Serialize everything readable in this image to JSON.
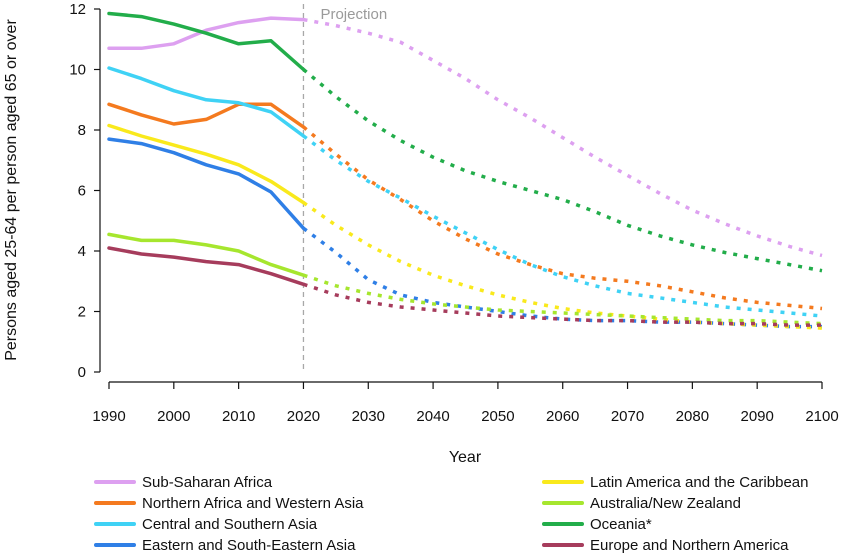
{
  "chart_data": {
    "type": "line",
    "title": "",
    "xlabel": "Year",
    "ylabel": "Persons aged 25-64 per person aged 65 or over",
    "xlim": [
      1990,
      2100
    ],
    "ylim": [
      0,
      12
    ],
    "x_ticks": [
      "1990",
      "2000",
      "2010",
      "2020",
      "2030",
      "2040",
      "2050",
      "2060",
      "2070",
      "2080",
      "2090",
      "2100"
    ],
    "y_ticks": [
      "0",
      "2",
      "4",
      "6",
      "8",
      "10",
      "12"
    ],
    "projection_start": 2020,
    "projection_label": "Projection",
    "grid": false,
    "legend_position": "bottom",
    "x_observed": [
      1990,
      1995,
      2000,
      2005,
      2010,
      2015,
      2020
    ],
    "x_projected": [
      2020,
      2025,
      2030,
      2035,
      2040,
      2045,
      2050,
      2055,
      2060,
      2065,
      2070,
      2075,
      2080,
      2085,
      2090,
      2095,
      2100
    ],
    "series": [
      {
        "name": "Sub-Saharan Africa",
        "color": "#dda0f0",
        "observed": [
          10.7,
          10.7,
          10.85,
          11.3,
          11.55,
          11.7,
          11.65
        ],
        "projected": [
          11.65,
          11.45,
          11.2,
          10.9,
          10.3,
          9.7,
          9.0,
          8.4,
          7.75,
          7.1,
          6.5,
          5.9,
          5.35,
          4.9,
          4.5,
          4.15,
          3.85
        ]
      },
      {
        "name": "Northern Africa and Western Asia",
        "color": "#f47a1f",
        "observed": [
          8.85,
          8.5,
          8.2,
          8.35,
          8.85,
          8.85,
          8.1
        ],
        "projected": [
          8.1,
          7.2,
          6.35,
          5.7,
          5.0,
          4.4,
          3.9,
          3.55,
          3.25,
          3.1,
          3.0,
          2.85,
          2.65,
          2.45,
          2.3,
          2.2,
          2.1
        ]
      },
      {
        "name": "Central and Southern Asia",
        "color": "#3fd2f5",
        "observed": [
          10.05,
          9.7,
          9.3,
          9.0,
          8.9,
          8.6,
          7.8
        ],
        "projected": [
          7.8,
          7.0,
          6.3,
          5.75,
          5.15,
          4.6,
          4.05,
          3.55,
          3.15,
          2.85,
          2.6,
          2.45,
          2.3,
          2.15,
          2.05,
          1.95,
          1.85
        ]
      },
      {
        "name": "Eastern and South-Eastern Asia",
        "color": "#2f7fe6",
        "observed": [
          7.7,
          7.55,
          7.25,
          6.85,
          6.55,
          5.95,
          4.75
        ],
        "projected": [
          4.75,
          3.95,
          3.05,
          2.55,
          2.3,
          2.15,
          2.0,
          1.85,
          1.75,
          1.7,
          1.7,
          1.65,
          1.65,
          1.6,
          1.55,
          1.5,
          1.5
        ]
      },
      {
        "name": "Latin America and the Caribbean",
        "color": "#f9e91c",
        "observed": [
          8.15,
          7.8,
          7.5,
          7.2,
          6.85,
          6.3,
          5.6
        ],
        "projected": [
          5.6,
          4.85,
          4.2,
          3.65,
          3.2,
          2.85,
          2.55,
          2.3,
          2.1,
          1.95,
          1.85,
          1.75,
          1.65,
          1.6,
          1.55,
          1.5,
          1.45
        ]
      },
      {
        "name": "Australia/New Zealand",
        "color": "#a6e62e",
        "observed": [
          4.55,
          4.35,
          4.35,
          4.2,
          4.0,
          3.55,
          3.2
        ],
        "projected": [
          3.2,
          2.85,
          2.6,
          2.4,
          2.25,
          2.15,
          2.05,
          2.0,
          1.95,
          1.9,
          1.85,
          1.8,
          1.75,
          1.7,
          1.7,
          1.65,
          1.6
        ]
      },
      {
        "name": "Oceania*",
        "color": "#22ad4a",
        "observed": [
          11.85,
          11.75,
          11.5,
          11.2,
          10.85,
          10.95,
          10.0
        ],
        "projected": [
          10.0,
          9.1,
          8.3,
          7.65,
          7.1,
          6.65,
          6.3,
          6.0,
          5.7,
          5.3,
          4.85,
          4.5,
          4.2,
          3.95,
          3.75,
          3.55,
          3.35
        ]
      },
      {
        "name": "Europe and Northern America",
        "color": "#a63c5c",
        "observed": [
          4.1,
          3.9,
          3.8,
          3.65,
          3.55,
          3.25,
          2.9
        ],
        "projected": [
          2.9,
          2.55,
          2.3,
          2.15,
          2.05,
          1.95,
          1.85,
          1.8,
          1.75,
          1.7,
          1.7,
          1.65,
          1.65,
          1.6,
          1.6,
          1.55,
          1.55
        ]
      }
    ]
  }
}
